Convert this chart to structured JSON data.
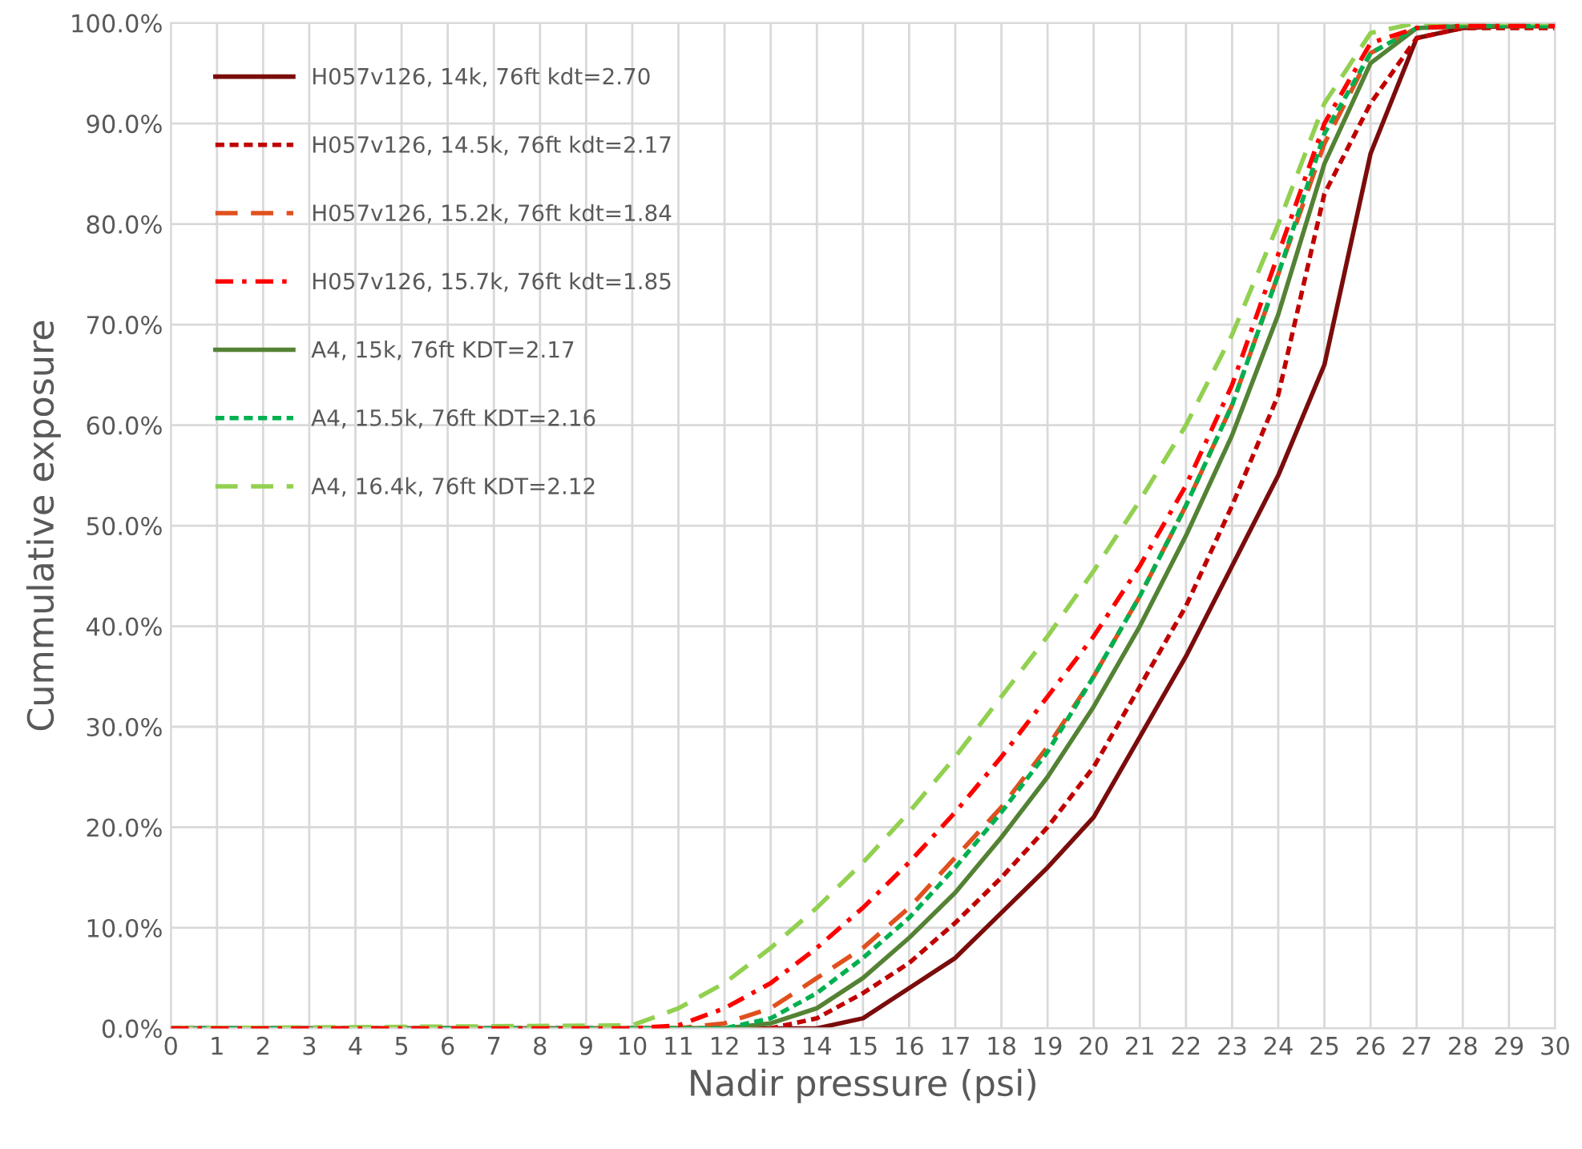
{
  "chart_data": {
    "type": "line",
    "xlabel": "Nadir pressure (psi)",
    "ylabel": "Cummulative exposure",
    "x": [
      0,
      10,
      11,
      12,
      13,
      14,
      15,
      16,
      17,
      18,
      19,
      20,
      21,
      22,
      23,
      24,
      25,
      26,
      27,
      28,
      29,
      30
    ],
    "series": [
      {
        "name": "H057v126, 14k, 76ft kdt=2.70",
        "color": "#7b0c0c",
        "line_style": "solid",
        "values": [
          0,
          0,
          0,
          0,
          0,
          0,
          1,
          4,
          7,
          11.5,
          16,
          21,
          29,
          37,
          46,
          55,
          66,
          87,
          98.5,
          99.5,
          99.7,
          99.7
        ]
      },
      {
        "name": "H057v126, 14.5k, 76ft kdt=2.17",
        "color": "#c00000",
        "line_style": "dotted",
        "values": [
          0,
          0,
          0,
          0,
          0,
          1,
          3.5,
          6.5,
          10.5,
          15,
          20,
          26,
          34,
          42,
          52,
          63,
          83,
          92,
          98.5,
          99.5,
          99.5,
          99.5
        ]
      },
      {
        "name": "H057v126, 15.2k, 76ft kdt=1.84",
        "color": "#e0501e",
        "line_style": "dashed",
        "values": [
          0,
          0,
          0,
          0.5,
          2,
          5,
          8,
          12,
          17,
          22,
          28,
          35,
          43,
          52,
          62,
          75,
          88,
          97,
          99.5,
          99.7,
          99.7,
          99.7
        ]
      },
      {
        "name": "H057v126, 15.7k, 76ft kdt=1.85",
        "color": "#ff0000",
        "line_style": "dashdot",
        "values": [
          0,
          0,
          0.3,
          2,
          4.5,
          8,
          12,
          16.5,
          21.5,
          27,
          33,
          39,
          46,
          54,
          64,
          77,
          90,
          98,
          99.5,
          99.7,
          99.7,
          99.7
        ]
      },
      {
        "name": "A4, 15k, 76ft KDT=2.17",
        "color": "#548235",
        "line_style": "solid",
        "values": [
          0,
          0,
          0,
          0,
          0.5,
          2,
          5,
          9,
          13.5,
          19,
          25,
          32,
          40,
          49,
          59,
          71,
          86,
          96,
          99.5,
          99.7,
          99.7,
          99.7
        ]
      },
      {
        "name": "A4, 15.5k, 76ft KDT=2.16",
        "color": "#00b050",
        "line_style": "dotted",
        "values": [
          0,
          0,
          0,
          0,
          1,
          3.5,
          7,
          11,
          16,
          21.5,
          27.5,
          35,
          43,
          52,
          62,
          75,
          89,
          97,
          99.5,
          99.7,
          99.7,
          99.7
        ]
      },
      {
        "name": "A4, 16.4k, 76ft KDT=2.12",
        "color": "#92d050",
        "line_style": "dashed",
        "values": [
          0,
          0.3,
          2,
          4.5,
          8,
          12,
          16.5,
          21.5,
          27,
          33,
          39,
          45.5,
          52.5,
          60,
          69,
          80,
          92,
          99,
          100,
          100,
          100,
          100
        ]
      }
    ],
    "xlim": [
      0,
      30
    ],
    "xticks": [
      0,
      1,
      2,
      3,
      4,
      5,
      6,
      7,
      8,
      9,
      10,
      11,
      12,
      13,
      14,
      15,
      16,
      17,
      18,
      19,
      20,
      21,
      22,
      23,
      24,
      25,
      26,
      27,
      28,
      29,
      30
    ],
    "ylim": [
      0,
      100
    ],
    "yticks": [
      {
        "value": 0,
        "label": "0.0%"
      },
      {
        "value": 10,
        "label": "10.0%"
      },
      {
        "value": 20,
        "label": "20.0%"
      },
      {
        "value": 30,
        "label": "30.0%"
      },
      {
        "value": 40,
        "label": "40.0%"
      },
      {
        "value": 50,
        "label": "50.0%"
      },
      {
        "value": 60,
        "label": "60.0%"
      },
      {
        "value": 70,
        "label": "70.0%"
      },
      {
        "value": 80,
        "label": "80.0%"
      },
      {
        "value": 90,
        "label": "90.0%"
      },
      {
        "value": 100,
        "label": "100.0%"
      }
    ],
    "grid": true,
    "legend": "top left"
  }
}
